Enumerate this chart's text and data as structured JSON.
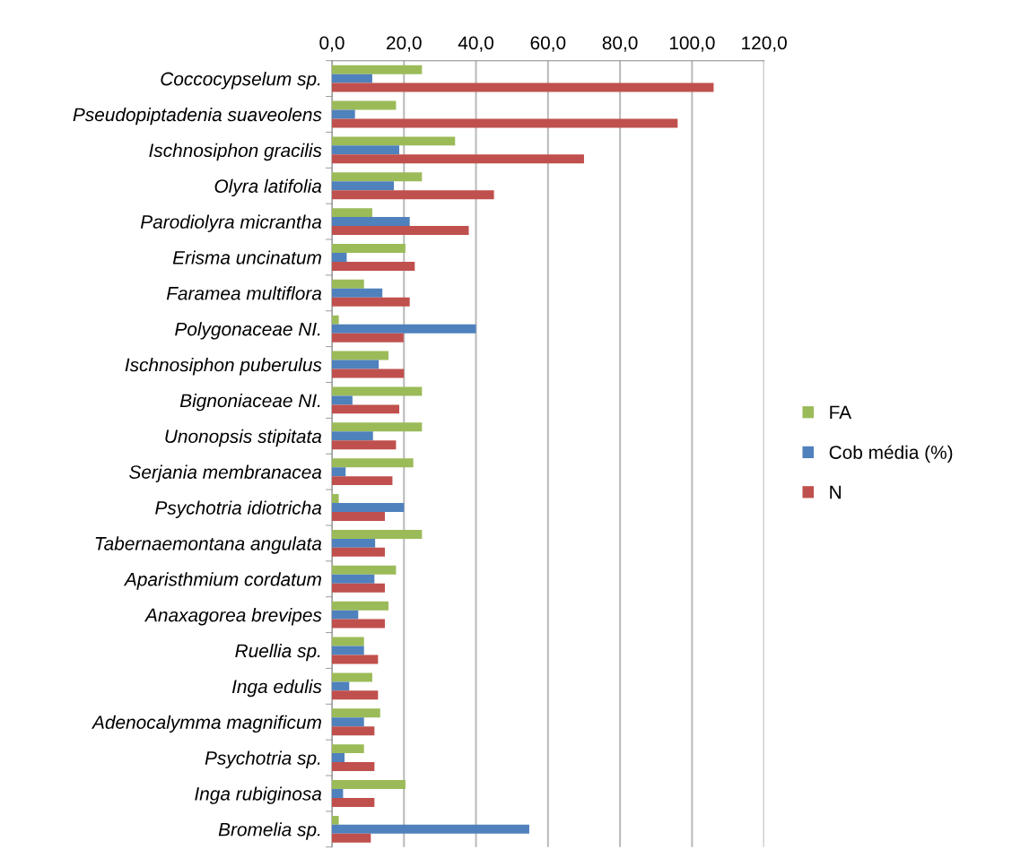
{
  "chart_data": {
    "type": "bar",
    "orientation": "horizontal",
    "categories": [
      "Coccocypselum sp.",
      "Pseudopiptadenia suaveolens",
      "Ischnosiphon gracilis",
      "Olyra latifolia",
      "Parodiolyra micrantha",
      "Erisma uncinatum",
      "Faramea multiflora",
      "Polygonaceae NI.",
      "Ischnosiphon puberulus",
      "Bignoniaceae NI.",
      "Unonopsis stipitata",
      "Serjania membranacea",
      "Psychotria idiotricha",
      "Tabernaemontana angulata",
      "Aparisthmium cordatum",
      "Anaxagorea brevipes",
      "Ruellia sp.",
      "Inga edulis",
      "Adenocalymma magnificum",
      "Psychotria sp.",
      "Inga rubiginosa",
      "Bromelia sp."
    ],
    "series": [
      {
        "name": "FA",
        "color": "#9bbb59",
        "values": [
          25,
          17.8,
          34.2,
          25,
          11.2,
          20.4,
          8.9,
          1.9,
          15.7,
          25,
          25,
          22.6,
          1.9,
          25,
          17.8,
          15.7,
          8.9,
          11.2,
          13.4,
          8.9,
          20.4,
          1.9
        ]
      },
      {
        "name": "Cob média (%)",
        "color": "#4f81bd",
        "values": [
          11.2,
          6.4,
          18.7,
          17.2,
          21.6,
          4.1,
          14,
          40,
          13,
          5.7,
          11.4,
          3.8,
          20,
          12,
          11.8,
          7.3,
          8.9,
          4.8,
          8.9,
          3.5,
          3.1,
          54.8
        ]
      },
      {
        "name": "N",
        "color": "#c0504d",
        "values": [
          106,
          96,
          70,
          45,
          38,
          23,
          21.6,
          19.9,
          20,
          18.7,
          17.8,
          16.8,
          14.7,
          14.7,
          14.7,
          14.7,
          12.8,
          12.8,
          11.8,
          11.8,
          11.8,
          10.8
        ]
      }
    ],
    "xlim": [
      0,
      120
    ],
    "xticks": [
      {
        "value": 0,
        "label": "0,0"
      },
      {
        "value": 20,
        "label": "20,0"
      },
      {
        "value": 40,
        "label": "40,0"
      },
      {
        "value": 60,
        "label": "60,0"
      },
      {
        "value": 80,
        "label": "80,0"
      },
      {
        "value": 100,
        "label": "100,0"
      },
      {
        "value": 120,
        "label": "120,0"
      }
    ],
    "grid": "x",
    "legend": "right"
  }
}
